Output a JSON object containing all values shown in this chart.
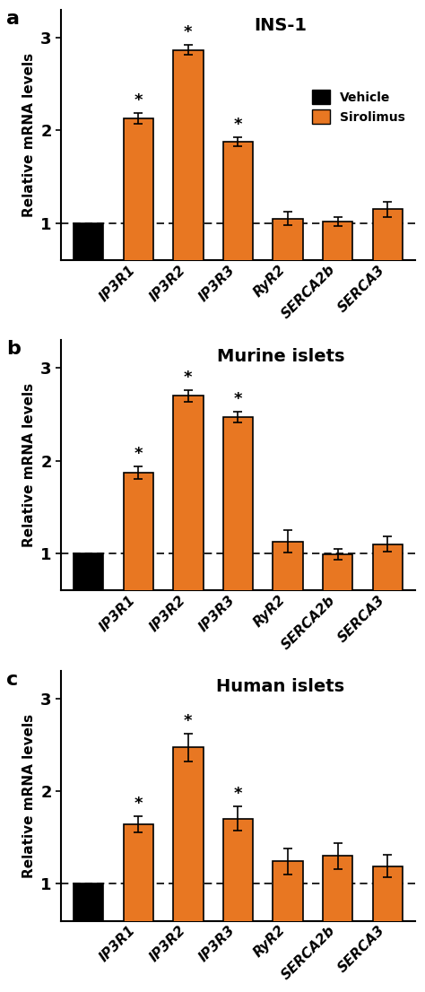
{
  "panels": [
    {
      "label": "a",
      "title": "INS-1",
      "categories": [
        "Vehicle",
        "IP3R1",
        "IP3R2",
        "IP3R3",
        "RyR2",
        "SERCA2b",
        "SERCA3"
      ],
      "values": [
        1.0,
        2.13,
        2.87,
        1.88,
        1.05,
        1.02,
        1.15
      ],
      "errors": [
        0.0,
        0.06,
        0.05,
        0.05,
        0.07,
        0.05,
        0.08
      ],
      "colors": [
        "#000000",
        "#E87722",
        "#E87722",
        "#E87722",
        "#E87722",
        "#E87722",
        "#E87722"
      ],
      "significant": [
        false,
        true,
        true,
        true,
        false,
        false,
        false
      ],
      "ylim": [
        0.6,
        3.3
      ],
      "yticks": [
        1,
        2,
        3
      ],
      "show_legend": true
    },
    {
      "label": "b",
      "title": "Murine islets",
      "categories": [
        "Vehicle",
        "IP3R1",
        "IP3R2",
        "IP3R3",
        "RyR2",
        "SERCA2b",
        "SERCA3"
      ],
      "values": [
        1.0,
        1.87,
        2.7,
        2.47,
        1.13,
        0.99,
        1.1
      ],
      "errors": [
        0.0,
        0.07,
        0.06,
        0.06,
        0.12,
        0.06,
        0.08
      ],
      "colors": [
        "#000000",
        "#E87722",
        "#E87722",
        "#E87722",
        "#E87722",
        "#E87722",
        "#E87722"
      ],
      "significant": [
        false,
        true,
        true,
        true,
        false,
        false,
        false
      ],
      "ylim": [
        0.6,
        3.3
      ],
      "yticks": [
        1,
        2,
        3
      ],
      "show_legend": false
    },
    {
      "label": "c",
      "title": "Human islets",
      "categories": [
        "Vehicle",
        "IP3R1",
        "IP3R2",
        "IP3R3",
        "RyR2",
        "SERCA2b",
        "SERCA3"
      ],
      "values": [
        1.0,
        1.64,
        2.47,
        1.7,
        1.24,
        1.3,
        1.19
      ],
      "errors": [
        0.0,
        0.09,
        0.15,
        0.13,
        0.14,
        0.14,
        0.12
      ],
      "colors": [
        "#000000",
        "#E87722",
        "#E87722",
        "#E87722",
        "#E87722",
        "#E87722",
        "#E87722"
      ],
      "significant": [
        false,
        true,
        true,
        true,
        false,
        false,
        false
      ],
      "ylim": [
        0.6,
        3.3
      ],
      "yticks": [
        1,
        2,
        3
      ],
      "show_legend": false
    }
  ],
  "xlabel_categories": [
    "IP3R1",
    "IP3R2",
    "IP3R3",
    "RyR2",
    "SERCA2b",
    "SERCA3"
  ],
  "vehicle_label": "Vehicle",
  "sirolimus_label": "Sirolimus",
  "ylabel": "Relative mRNA levels",
  "bar_width": 0.6,
  "orange_color": "#E87722",
  "black_color": "#000000",
  "edge_color": "#000000"
}
